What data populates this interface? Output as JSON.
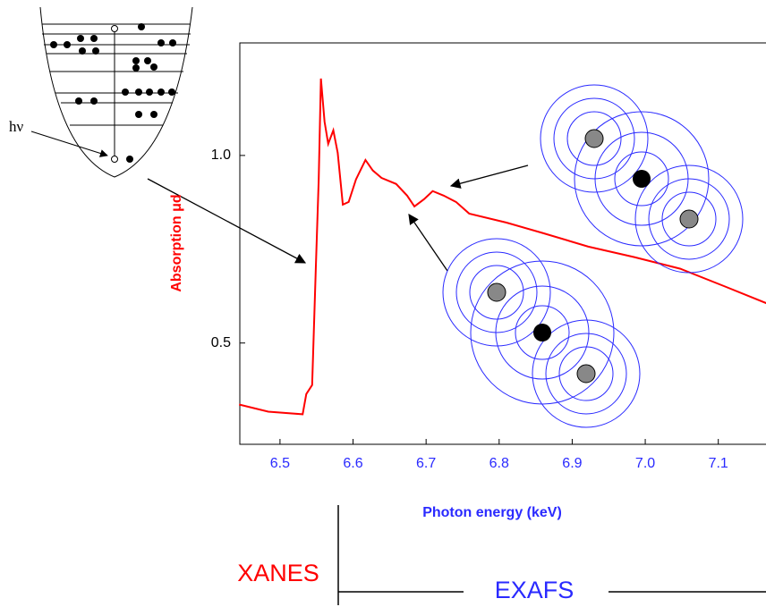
{
  "chart_data": {
    "type": "line",
    "x_label": "Photon energy (keV)",
    "y_label": "Absorption μd",
    "annotations": [
      "hν",
      "XANES",
      "EXAFS"
    ],
    "xlim": [
      6.445,
      7.18
    ],
    "ylim": [
      0.23,
      1.3
    ],
    "xticks": [
      6.5,
      6.6,
      6.7,
      6.8,
      6.9,
      {
        "value": 7.0,
        "label": "7.0"
      },
      7.1
    ],
    "yticks": [
      0.5,
      {
        "value": 1.0,
        "label": "1.0"
      }
    ],
    "grid": false,
    "series": [
      {
        "color": "#ff0000",
        "x": [
          6.444,
          6.484,
          6.531,
          6.536,
          6.544,
          6.549,
          6.553,
          6.556,
          6.561,
          6.566,
          6.573,
          6.579,
          6.586,
          6.594,
          6.604,
          6.617,
          6.627,
          6.639,
          6.659,
          6.674,
          6.684,
          6.697,
          6.709,
          6.724,
          6.741,
          6.759,
          6.81,
          6.86,
          6.922,
          6.985,
          7.048,
          7.11,
          7.18
        ],
        "values": [
          0.336,
          0.317,
          0.31,
          0.364,
          0.388,
          0.698,
          0.936,
          1.205,
          1.09,
          1.031,
          1.067,
          1.007,
          0.869,
          0.876,
          0.936,
          0.988,
          0.96,
          0.94,
          0.924,
          0.893,
          0.864,
          0.883,
          0.905,
          0.893,
          0.876,
          0.845,
          0.821,
          0.793,
          0.757,
          0.729,
          0.698,
          0.65,
          0.595
        ]
      }
    ]
  }
}
